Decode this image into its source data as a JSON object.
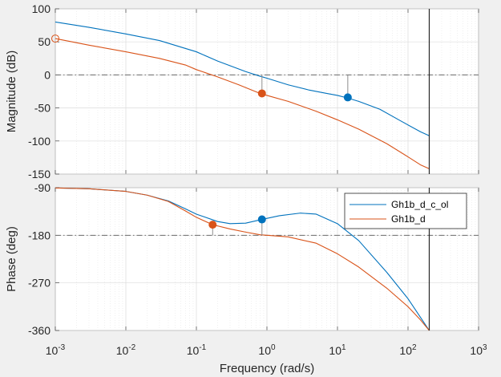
{
  "chart_data": {
    "type": "line",
    "xscale": "log",
    "xlim": [
      0.001,
      1000
    ],
    "xlabel": "Frequency  (rad/s)",
    "x_ticks": [
      {
        "value": 0.001,
        "base": "10",
        "exp": "-3"
      },
      {
        "value": 0.01,
        "base": "10",
        "exp": "-2"
      },
      {
        "value": 0.1,
        "base": "10",
        "exp": "-1"
      },
      {
        "value": 1,
        "base": "10",
        "exp": "0"
      },
      {
        "value": 10,
        "base": "10",
        "exp": "1"
      },
      {
        "value": 100,
        "base": "10",
        "exp": "2"
      },
      {
        "value": 1000,
        "base": "10",
        "exp": "3"
      }
    ],
    "nyquist_frequency": 200,
    "grid": true,
    "legend": {
      "placement": "top-right",
      "entries": [
        "Gh1b_d_c_ol",
        "Gh1b_d"
      ]
    },
    "colors": {
      "Gh1b_d_c_ol": "#0072BD",
      "Gh1b_d": "#D95319",
      "reference": "#262626"
    },
    "panels": [
      {
        "id": "magnitude",
        "ylabel": "Magnitude (dB)",
        "ylim": [
          -150,
          100
        ],
        "y_ticks": [
          "100",
          "50",
          "0",
          "-50",
          "-100",
          "-150"
        ],
        "y_tick_values": [
          100,
          50,
          0,
          -50,
          -100,
          -150
        ],
        "reference_line": 0,
        "series": [
          {
            "name": "Gh1b_d_c_ol",
            "points": [
              [
                0.001,
                80
              ],
              [
                0.003,
                72
              ],
              [
                0.01,
                62
              ],
              [
                0.03,
                52
              ],
              [
                0.1,
                35
              ],
              [
                0.2,
                21
              ],
              [
                0.5,
                5
              ],
              [
                0.8,
                -2
              ],
              [
                1,
                -5
              ],
              [
                2,
                -15
              ],
              [
                4,
                -23
              ],
              [
                7,
                -28
              ],
              [
                10,
                -31
              ],
              [
                14,
                -35
              ],
              [
                20,
                -40
              ],
              [
                40,
                -52
              ],
              [
                80,
                -70
              ],
              [
                150,
                -86
              ],
              [
                200,
                -92
              ]
            ]
          },
          {
            "name": "Gh1b_d",
            "points": [
              [
                0.001,
                55
              ],
              [
                0.003,
                45
              ],
              [
                0.01,
                35
              ],
              [
                0.03,
                25
              ],
              [
                0.07,
                15
              ],
              [
                0.1,
                8
              ],
              [
                0.2,
                -3
              ],
              [
                0.4,
                -15
              ],
              [
                0.8,
                -28
              ],
              [
                1,
                -31
              ],
              [
                2,
                -40
              ],
              [
                5,
                -55
              ],
              [
                10,
                -68
              ],
              [
                20,
                -82
              ],
              [
                50,
                -104
              ],
              [
                100,
                -124
              ],
              [
                150,
                -136
              ],
              [
                200,
                -142
              ]
            ]
          }
        ],
        "markers": [
          {
            "series": "Gh1b_d_c_ol",
            "x": 14,
            "y": -34,
            "stem_from": 0
          },
          {
            "series": "Gh1b_d",
            "x": 0.85,
            "y": -28,
            "stem_from": 0
          }
        ],
        "open_marker": {
          "series": "Gh1b_d",
          "x": 0.001,
          "y": 55
        }
      },
      {
        "id": "phase",
        "ylabel": "Phase (deg)",
        "ylim": [
          -360,
          -90
        ],
        "y_ticks": [
          "-90",
          "-180",
          "-270",
          "-360"
        ],
        "y_tick_values": [
          -90,
          -180,
          -270,
          -360
        ],
        "reference_line": -180,
        "series": [
          {
            "name": "Gh1b_d_c_ol",
            "points": [
              [
                0.001,
                -90.5
              ],
              [
                0.003,
                -92
              ],
              [
                0.01,
                -97
              ],
              [
                0.02,
                -104
              ],
              [
                0.04,
                -115
              ],
              [
                0.07,
                -130
              ],
              [
                0.1,
                -140
              ],
              [
                0.2,
                -154
              ],
              [
                0.3,
                -158
              ],
              [
                0.5,
                -157
              ],
              [
                0.85,
                -150
              ],
              [
                1.5,
                -143
              ],
              [
                3,
                -138
              ],
              [
                5,
                -140
              ],
              [
                10,
                -158
              ],
              [
                20,
                -190
              ],
              [
                50,
                -250
              ],
              [
                100,
                -300
              ],
              [
                150,
                -335
              ],
              [
                200,
                -360
              ]
            ]
          },
          {
            "name": "Gh1b_d",
            "points": [
              [
                0.001,
                -90.5
              ],
              [
                0.003,
                -92
              ],
              [
                0.01,
                -97
              ],
              [
                0.02,
                -104
              ],
              [
                0.04,
                -116
              ],
              [
                0.07,
                -134
              ],
              [
                0.1,
                -146
              ],
              [
                0.17,
                -160
              ],
              [
                0.3,
                -168
              ],
              [
                0.5,
                -174
              ],
              [
                0.8,
                -179
              ],
              [
                1,
                -180
              ],
              [
                2,
                -183
              ],
              [
                5,
                -195
              ],
              [
                10,
                -215
              ],
              [
                20,
                -240
              ],
              [
                50,
                -280
              ],
              [
                100,
                -315
              ],
              [
                150,
                -340
              ],
              [
                200,
                -360
              ]
            ]
          }
        ],
        "markers": [
          {
            "series": "Gh1b_d_c_ol",
            "x": 0.85,
            "y": -150,
            "stem_from": -180
          },
          {
            "series": "Gh1b_d",
            "x": 0.17,
            "y": -160,
            "stem_from": -180
          }
        ]
      }
    ]
  }
}
